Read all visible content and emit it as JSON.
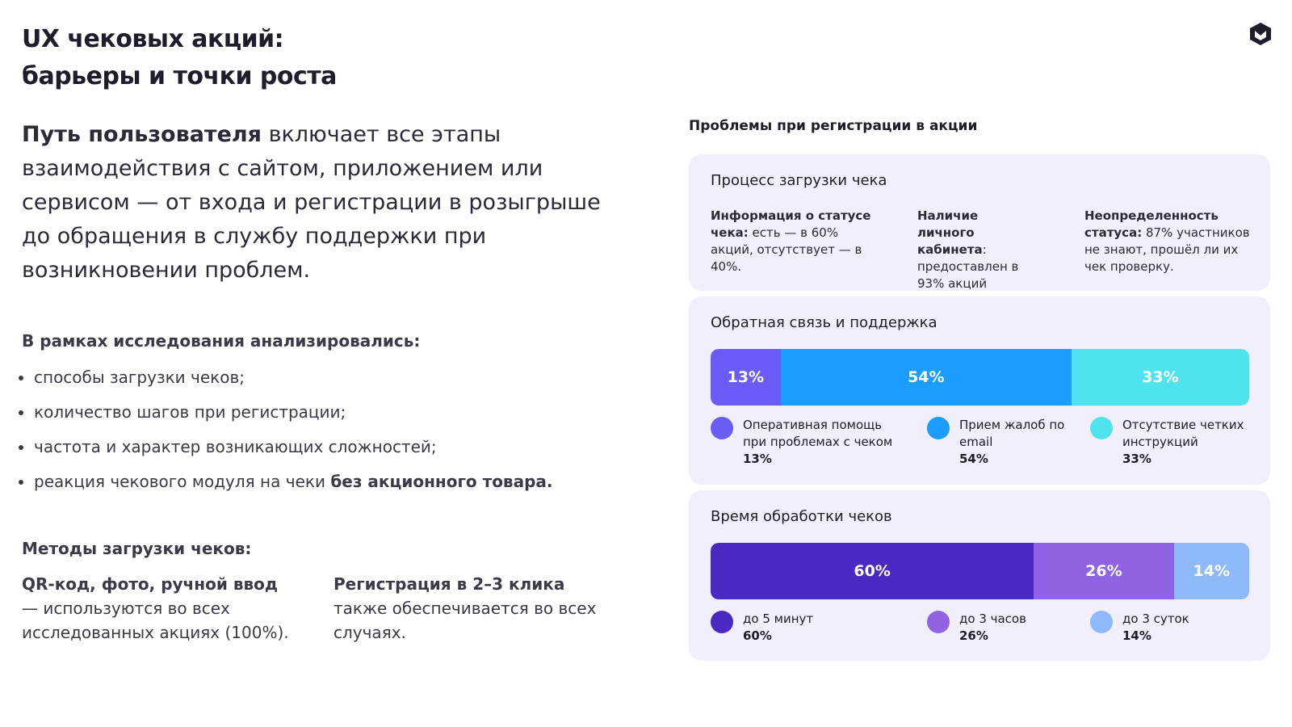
{
  "header": {
    "title_lines": [
      "UX чековых акций:",
      "барьеры и точки роста"
    ]
  },
  "intro": {
    "bold": "Путь пользователя",
    "text": " включает все этапы взаимодействия с сайтом, приложением или сервисом — от входа и регистрации в розыгрыше до обращения в службу поддержки при возникновении проблем."
  },
  "analysis": {
    "heading": "В рамках исследования анализировались:",
    "items": [
      {
        "text": "способы загрузки чеков;"
      },
      {
        "text": "количество шагов при регистрации;"
      },
      {
        "text": "частота и характер возникающих сложностей;"
      },
      {
        "text": "реакция чекового модуля на чеки ",
        "bold": "без акционного товара."
      }
    ]
  },
  "methods": {
    "heading": "Методы загрузки чеков:",
    "columns": [
      {
        "bold": "QR-код, фото, ручной ввод",
        "text": " — используются во всех исследованных акциях (100%)."
      },
      {
        "bold": "Регистрация в 2–3 клика",
        "text": " также обеспечивается во всех случаях."
      }
    ]
  },
  "panel_title": "Проблемы при регистрации в акции",
  "upload": {
    "title": "Процесс загрузки чека",
    "items": [
      {
        "bold": "Информация о статусе чека:",
        "text": " есть — в 60% акций, отсутствует — в 40%."
      },
      {
        "bold": "Наличие личного кабинета",
        "text": ": предоставлен в 93% акций"
      },
      {
        "bold": "Неопределенность статуса:",
        "text": " 87% участников не знают, прошёл ли их чек проверку."
      }
    ]
  },
  "charts": [
    {
      "type": "stacked-bar",
      "title": "Обратная связь и поддержка",
      "series": [
        {
          "name": "Оперативная помощь при проблемах с чеком",
          "value": 13,
          "label": "13%",
          "color": "#6a5cf6"
        },
        {
          "name": "Прием жалоб по email",
          "value": 54,
          "label": "54%",
          "color": "#1b9dff"
        },
        {
          "name": "Отсутствие четких инструкций",
          "value": 33,
          "label": "33%",
          "color": "#4fe3ee"
        }
      ]
    },
    {
      "type": "stacked-bar",
      "title": "Время обработки чеков",
      "series": [
        {
          "name": "до 5 минут",
          "value": 60,
          "label": "60%",
          "color": "#4a28c2"
        },
        {
          "name": "до 3 часов",
          "value": 26,
          "label": "26%",
          "color": "#8f63e3"
        },
        {
          "name": "до 3 суток",
          "value": 14,
          "label": "14%",
          "color": "#8ebafb"
        }
      ]
    }
  ]
}
